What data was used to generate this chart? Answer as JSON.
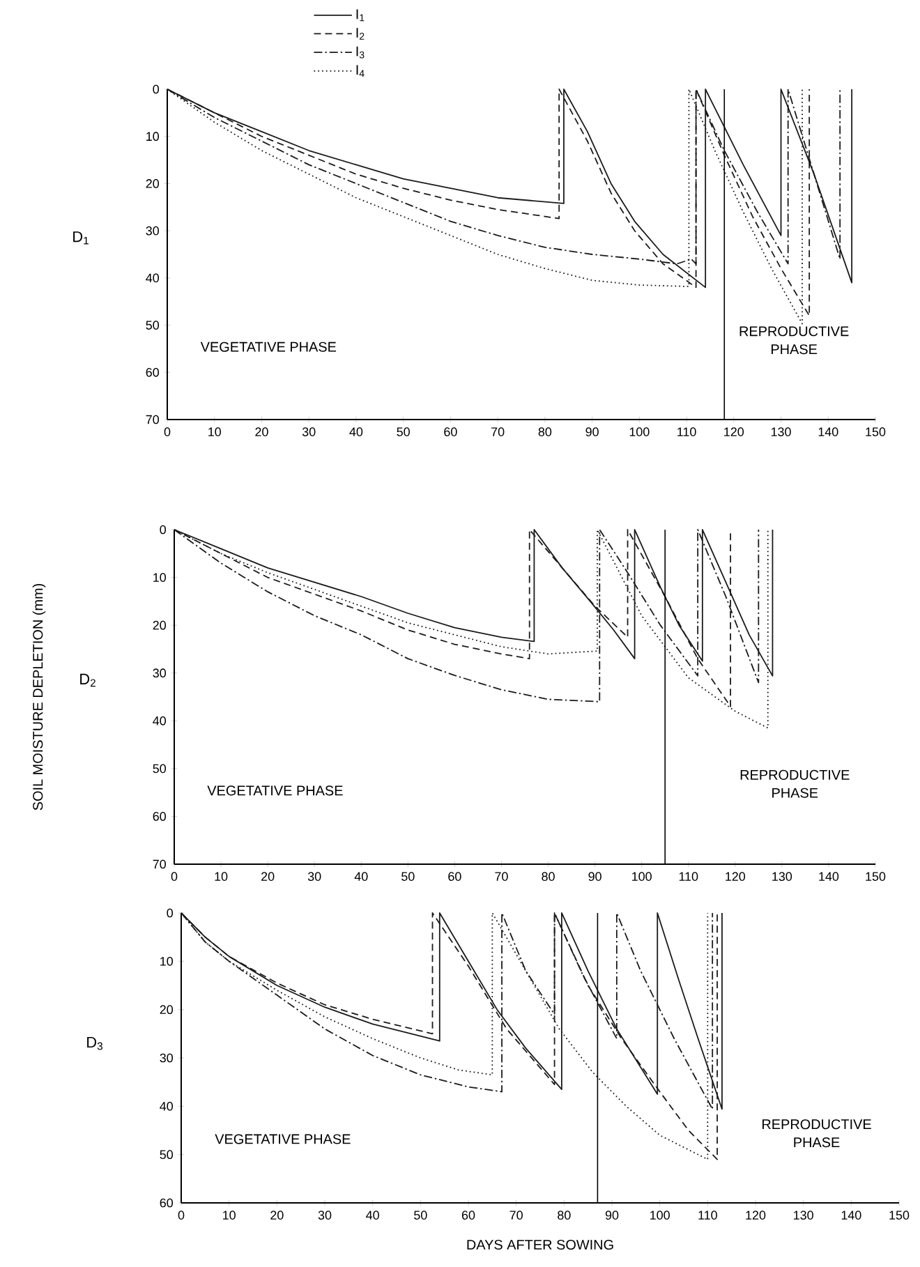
{
  "chart_data": [
    {
      "type": "line",
      "title": "D$_{1}$",
      "xlim": [
        0,
        150
      ],
      "ylim": [
        70,
        0
      ],
      "xticks": [
        0,
        10,
        20,
        30,
        40,
        50,
        60,
        70,
        80,
        90,
        100,
        110,
        120,
        130,
        140,
        150
      ],
      "yticks": [
        0,
        10,
        20,
        30,
        40,
        50,
        60,
        70
      ],
      "legend": "top left",
      "ref_lines": [
        {
          "axis": "x",
          "value": 118
        }
      ],
      "annotations": [
        "VEGETATIVE PHASE",
        "REPRODUCTIVE PHASE"
      ],
      "series": [
        {
          "name": "I$_{1}$",
          "color": "#1a1a1a",
          "line_style": "solid",
          "x": [
            0,
            10,
            20,
            30,
            40,
            50,
            60,
            70,
            84,
            84,
            89,
            94,
            99,
            105,
            114,
            114,
            122,
            130,
            130,
            137,
            145,
            145
          ],
          "values": [
            0,
            5,
            9,
            13,
            16,
            19,
            21,
            23,
            24.2,
            0,
            9,
            20,
            28,
            35,
            42,
            0,
            16,
            31,
            0,
            18,
            41,
            0
          ]
        },
        {
          "name": "I$_{2}$",
          "color": "#1a1a1a",
          "line_style": "dashed",
          "x": [
            0,
            10,
            20,
            30,
            40,
            50,
            60,
            70,
            83,
            83,
            89,
            94,
            99,
            105,
            112,
            112,
            118,
            124,
            130,
            136,
            136
          ],
          "values": [
            0,
            5,
            10,
            14,
            18,
            21,
            23.5,
            25.5,
            27.4,
            0,
            11,
            22,
            30,
            37,
            42,
            0,
            14,
            27,
            38,
            48,
            0
          ]
        },
        {
          "name": "I$_{3}$",
          "color": "#1a1a1a",
          "line_style": "dashdot",
          "x": [
            0,
            10,
            20,
            30,
            40,
            50,
            60,
            70,
            80,
            90,
            100,
            108,
            111,
            112,
            112,
            118,
            125,
            131.5,
            131.5,
            137,
            142.5,
            142.5
          ],
          "values": [
            0,
            6,
            11,
            16,
            20,
            24,
            28,
            31,
            33.5,
            35,
            36,
            37,
            36,
            37,
            0,
            13,
            26,
            37,
            0,
            18,
            36,
            0
          ]
        },
        {
          "name": "I$_{4}$",
          "color": "#1a1a1a",
          "line_style": "dotted",
          "x": [
            0,
            10,
            20,
            30,
            40,
            50,
            60,
            70,
            80,
            90,
            100,
            110.5,
            110.5,
            116,
            122,
            128,
            134.5,
            134.5
          ],
          "values": [
            0,
            7,
            13,
            18,
            23,
            27,
            31,
            35,
            38,
            40.5,
            41.5,
            41.8,
            0,
            13,
            26,
            38,
            49.7,
            0
          ]
        }
      ]
    },
    {
      "type": "line",
      "title": "D$_{2}$",
      "ylabel": "SOIL MOISTURE DEPLETION (mm)",
      "xlim": [
        0,
        150
      ],
      "ylim": [
        70,
        0
      ],
      "xticks": [
        0,
        10,
        20,
        30,
        40,
        50,
        60,
        70,
        80,
        90,
        100,
        110,
        120,
        130,
        140,
        150
      ],
      "yticks": [
        0,
        10,
        20,
        30,
        40,
        50,
        60,
        70
      ],
      "ref_lines": [
        {
          "axis": "x",
          "value": 105
        }
      ],
      "annotations": [
        "VEGETATIVE PHASE",
        "REPRODUCTIVE PHASE"
      ],
      "series": [
        {
          "color": "#1a1a1a",
          "line_style": "solid",
          "x": [
            0,
            10,
            20,
            30,
            40,
            50,
            60,
            70,
            77,
            77,
            83,
            89,
            94,
            98.5,
            98.5,
            104,
            108,
            113,
            113,
            118,
            123,
            128,
            128
          ],
          "values": [
            0,
            4,
            8,
            11,
            14,
            17.5,
            20.5,
            22.5,
            23.4,
            0,
            8,
            15,
            21,
            27,
            0,
            12,
            20,
            27.5,
            0,
            11,
            22,
            30.6,
            0
          ]
        },
        {
          "color": "#1a1a1a",
          "line_style": "dashed",
          "x": [
            0,
            10,
            20,
            30,
            40,
            50,
            60,
            70,
            76,
            76,
            83,
            90,
            97,
            97,
            105,
            112,
            119,
            119
          ],
          "values": [
            0,
            5,
            10,
            13.5,
            17,
            21,
            24,
            26,
            27,
            0,
            8,
            16,
            22.5,
            0,
            14,
            27,
            37,
            0
          ]
        },
        {
          "color": "#1a1a1a",
          "line_style": "dashdot",
          "x": [
            0,
            10,
            20,
            30,
            40,
            50,
            60,
            70,
            80,
            91,
            91,
            97,
            104,
            112,
            112,
            118,
            125,
            125
          ],
          "values": [
            0,
            7,
            13,
            18,
            22,
            27,
            30.5,
            33.5,
            35.5,
            36,
            0,
            9,
            20,
            30.6,
            0,
            14,
            32,
            0
          ]
        },
        {
          "color": "#1a1a1a",
          "line_style": "dotted",
          "x": [
            0,
            10,
            20,
            30,
            40,
            50,
            60,
            70,
            80,
            90.5,
            90.5,
            100,
            110,
            120,
            127,
            127
          ],
          "values": [
            0,
            5,
            9,
            12.5,
            16,
            19.5,
            22,
            24.5,
            26,
            25.4,
            0,
            18,
            31,
            38,
            41.5,
            0
          ]
        }
      ]
    },
    {
      "type": "line",
      "title": "D$_{3}$",
      "xlabel": "DAYS AFTER SOWING",
      "xlim": [
        0,
        150
      ],
      "ylim": [
        60,
        0
      ],
      "xticks": [
        0,
        10,
        20,
        30,
        40,
        50,
        60,
        70,
        80,
        90,
        100,
        110,
        120,
        130,
        140,
        150
      ],
      "yticks": [
        0,
        10,
        20,
        30,
        40,
        50,
        60
      ],
      "ref_lines": [
        {
          "axis": "x",
          "value": 87
        }
      ],
      "annotations": [
        "VEGETATIVE PHASE",
        "REPRODUCTIVE PHASE"
      ],
      "series": [
        {
          "color": "#1a1a1a",
          "line_style": "solid",
          "x": [
            0,
            5,
            10,
            20,
            30,
            40,
            54,
            54,
            60,
            66,
            72,
            79.5,
            79.5,
            85,
            91,
            99.5,
            99.5,
            104,
            108,
            113,
            113
          ],
          "values": [
            0,
            5,
            9,
            15,
            19.5,
            23,
            26.5,
            0,
            10,
            20,
            28,
            36.5,
            0,
            12,
            24,
            37.5,
            0,
            14,
            26,
            40.6,
            0
          ]
        },
        {
          "color": "#1a1a1a",
          "line_style": "dashed",
          "x": [
            0,
            5,
            10,
            20,
            30,
            40,
            52.5,
            52.5,
            60,
            68,
            78,
            78,
            85,
            92,
            100,
            106,
            112,
            112
          ],
          "values": [
            0,
            5,
            9,
            14.5,
            19,
            22,
            25,
            0,
            11,
            24,
            35.5,
            0,
            15,
            26,
            37,
            45,
            51,
            0
          ]
        },
        {
          "color": "#1a1a1a",
          "line_style": "dashdot",
          "x": [
            0,
            5,
            10,
            20,
            30,
            40,
            50,
            60,
            67,
            67,
            72,
            78,
            78,
            84,
            91,
            91,
            96,
            103,
            111,
            111
          ],
          "values": [
            0,
            6,
            10,
            17,
            24,
            29.5,
            33.5,
            36,
            37,
            0,
            12,
            21,
            0,
            13,
            26,
            0,
            12,
            26,
            40.6,
            0
          ]
        },
        {
          "color": "#1a1a1a",
          "line_style": "dotted",
          "x": [
            0,
            5,
            10,
            20,
            30,
            40,
            50,
            58,
            65,
            65,
            72,
            79,
            86,
            93,
            100,
            110,
            110
          ],
          "values": [
            0,
            6,
            10,
            16,
            21.5,
            26,
            30,
            32.5,
            33.5,
            0,
            12,
            24,
            33,
            40,
            46,
            51,
            0
          ]
        }
      ]
    }
  ]
}
